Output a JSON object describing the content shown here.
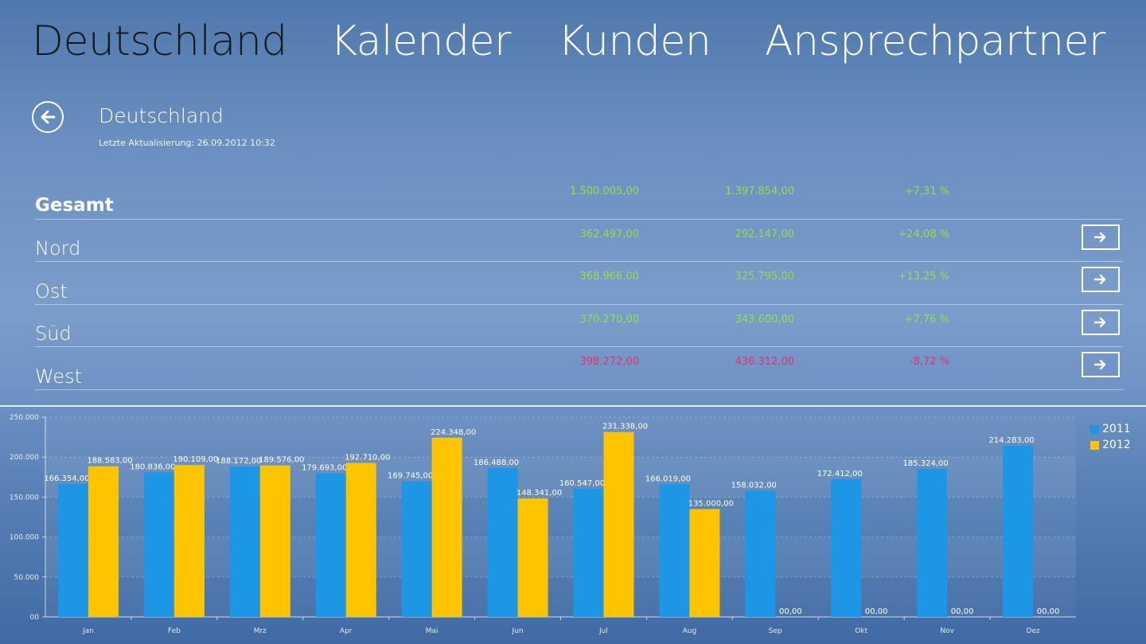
{
  "nav": {
    "tabs": [
      {
        "label": "Deutschland"
      },
      {
        "label": "Kalender"
      },
      {
        "label": "Kunden"
      },
      {
        "label": "Ansprechpartner"
      }
    ]
  },
  "header": {
    "title": "Deutschland",
    "last_update": "Letzte Aktualisierung: 26.09.2012 10:32"
  },
  "regions": [
    {
      "name": "Gesamt",
      "v2012": "1.500.005,00",
      "v2011": "1.397.854,00",
      "change": "+7,31 %",
      "trend": "pos"
    },
    {
      "name": "Nord",
      "v2012": "362.497,00",
      "v2011": "292.147,00",
      "change": "+24,08 %",
      "trend": "pos"
    },
    {
      "name": "Ost",
      "v2012": "368.966,00",
      "v2011": "325.795,00",
      "change": "+13,25 %",
      "trend": "pos"
    },
    {
      "name": "Süd",
      "v2012": "370.270,00",
      "v2011": "343.600,00",
      "change": "+7,76 %",
      "trend": "pos"
    },
    {
      "name": "West",
      "v2012": "398.272,00",
      "v2011": "436.312,00",
      "change": "-8,72 %",
      "trend": "neg"
    }
  ],
  "colors": {
    "positive": "#8fe04a",
    "negative": "#e8306a",
    "series2011": "#1e96e6",
    "series2012": "#ffc400"
  },
  "chart_data": {
    "type": "bar",
    "categories": [
      "Jan",
      "Feb",
      "Mrz",
      "Apr",
      "Mai",
      "Jun",
      "Jul",
      "Aug",
      "Sep",
      "Okt",
      "Nov",
      "Dez"
    ],
    "series": [
      {
        "name": "2011",
        "values": [
          166354,
          180836,
          188172,
          179693,
          169745,
          186488,
          160547,
          166019,
          158032,
          172412,
          185324,
          214283
        ],
        "labels": [
          "166.354,00",
          "180.836,00",
          "188.172,00",
          "179.693,00",
          "169.745,00",
          "186.488,00",
          "160.547,00",
          "166.019,00",
          "158.032,00",
          "172.412,00",
          "185.324,00",
          "214.283,00"
        ]
      },
      {
        "name": "2012",
        "values": [
          188583,
          190109,
          189576,
          192710,
          224348,
          148341,
          231338,
          135000,
          0,
          0,
          0,
          0
        ],
        "labels": [
          "188.583,00",
          "190.109,00",
          "189.576,00",
          "192.710,00",
          "224.348,00",
          "148.341,00",
          "231.338,00",
          "135.000,00",
          "00,00",
          "00,00",
          "00,00",
          "00,00"
        ]
      }
    ],
    "yticks": [
      {
        "value": 0,
        "label": "00"
      },
      {
        "value": 50000,
        "label": "50.000"
      },
      {
        "value": 100000,
        "label": "100.000"
      },
      {
        "value": 150000,
        "label": "150.000"
      },
      {
        "value": 200000,
        "label": "200.000"
      },
      {
        "value": 250000,
        "label": "250.000"
      }
    ],
    "ylim": [
      0,
      250000
    ],
    "legend": [
      {
        "label": "2011"
      },
      {
        "label": "2012"
      }
    ],
    "title": "",
    "xlabel": "",
    "ylabel": ""
  }
}
